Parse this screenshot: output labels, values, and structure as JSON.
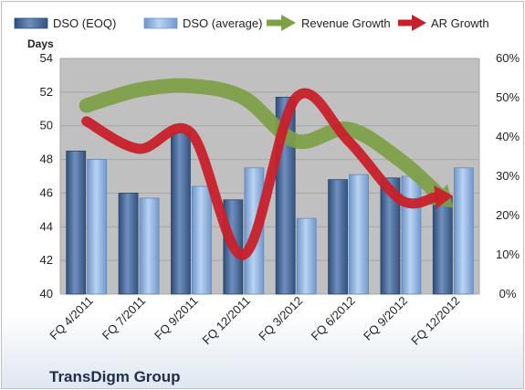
{
  "chart_data": {
    "type": "bar",
    "title": "",
    "company": "TransDigm Group",
    "ylabel": "Days",
    "categories": [
      "FQ 4/2011",
      "FQ 7/2011",
      "FQ 9/2011",
      "FQ 12/2011",
      "FQ 3/2012",
      "FQ 6/2012",
      "FQ 9/2012",
      "FQ 12/2012"
    ],
    "series": [
      {
        "name": "DSO (EOQ)",
        "type": "bar",
        "axis": "left",
        "values": [
          48.5,
          46.0,
          49.6,
          45.6,
          51.7,
          46.8,
          46.9,
          45.8
        ]
      },
      {
        "name": "DSO (average)",
        "type": "bar",
        "axis": "left",
        "values": [
          48.0,
          45.7,
          46.4,
          47.5,
          44.5,
          47.1,
          47.0,
          47.5
        ]
      },
      {
        "name": "Revenue Growth",
        "type": "line",
        "axis": "right",
        "values": [
          48,
          52,
          53,
          50,
          39,
          42,
          34,
          22
        ]
      },
      {
        "name": "AR Growth",
        "type": "line",
        "axis": "right",
        "values": [
          44,
          37,
          41,
          10,
          50,
          39,
          24,
          25
        ]
      }
    ],
    "ylim": [
      40,
      54
    ],
    "yticks": [
      "40",
      "42",
      "44",
      "46",
      "48",
      "50",
      "52",
      "54"
    ],
    "y2lim": [
      0,
      60
    ],
    "y2ticks": [
      "0%",
      "10%",
      "20%",
      "30%",
      "40%",
      "50%",
      "60%"
    ],
    "grid": true,
    "legend": "top",
    "colors": {
      "dso_eoq": "#4a6b9a",
      "dso_avg": "#8fb4e3",
      "revenue_growth": "#7ea046",
      "ar_growth": "#c8202a",
      "plot_bg": "#c0c0c0"
    }
  }
}
